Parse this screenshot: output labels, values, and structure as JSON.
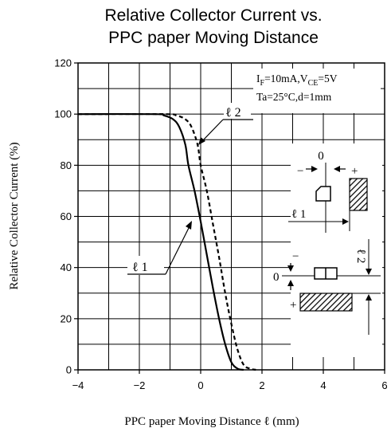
{
  "chart_data": {
    "type": "line",
    "title_lines": [
      "Relative Collector Current vs.",
      "PPC paper Moving Distance"
    ],
    "xlabel": "PPC paper Moving Distance  ℓ  (mm)",
    "ylabel": "Relative Collector Current (%)",
    "xlim": [
      -4,
      6
    ],
    "ylim": [
      0,
      120
    ],
    "xticks": [
      -4,
      -2,
      0,
      2,
      4,
      6
    ],
    "xtick_labels": [
      "−4",
      "−2",
      "0",
      "2",
      "4",
      "6"
    ],
    "yticks": [
      0,
      20,
      40,
      60,
      80,
      100,
      120
    ],
    "ytick_labels": [
      "0",
      "20",
      "40",
      "60",
      "80",
      "100",
      "120"
    ],
    "grid": true,
    "conditions": {
      "line1_main": "I",
      "line1_sub1": "F",
      "line1_mid": "=10mA,V",
      "line1_sub2": "CE",
      "line1_end": "=5V",
      "line2": "Ta=25°C,d=1mm"
    },
    "series": [
      {
        "name": "ℓ 1",
        "style": "solid",
        "x": [
          -4,
          -1.5,
          -1.2,
          -0.9,
          -0.7,
          -0.5,
          -0.4,
          -0.2,
          0,
          0.2,
          0.4,
          0.6,
          0.8,
          1.0,
          1.2,
          1.4
        ],
        "y": [
          100,
          100,
          99.5,
          98,
          95,
          88,
          80,
          70,
          58,
          45,
          32,
          20,
          10,
          3,
          0.5,
          0
        ]
      },
      {
        "name": "ℓ 2",
        "style": "dashed",
        "x": [
          -4,
          -1.2,
          -0.8,
          -0.5,
          -0.3,
          -0.1,
          0,
          0.2,
          0.4,
          0.6,
          0.8,
          1.0,
          1.2,
          1.4,
          1.6,
          1.8
        ],
        "y": [
          100,
          100,
          99.5,
          98,
          95,
          88,
          80,
          70,
          57,
          44,
          30,
          18,
          8,
          2,
          0.5,
          0
        ]
      }
    ],
    "curve_labels": [
      "ℓ 1",
      "ℓ 2"
    ]
  },
  "diagram": {
    "zero_top": "0",
    "minus_top": "−",
    "plus_top": "+",
    "l1_label": "ℓ 1",
    "l2_label": "ℓ 2",
    "zero_side": "0",
    "minus_side": "−",
    "plus_side": "+"
  }
}
